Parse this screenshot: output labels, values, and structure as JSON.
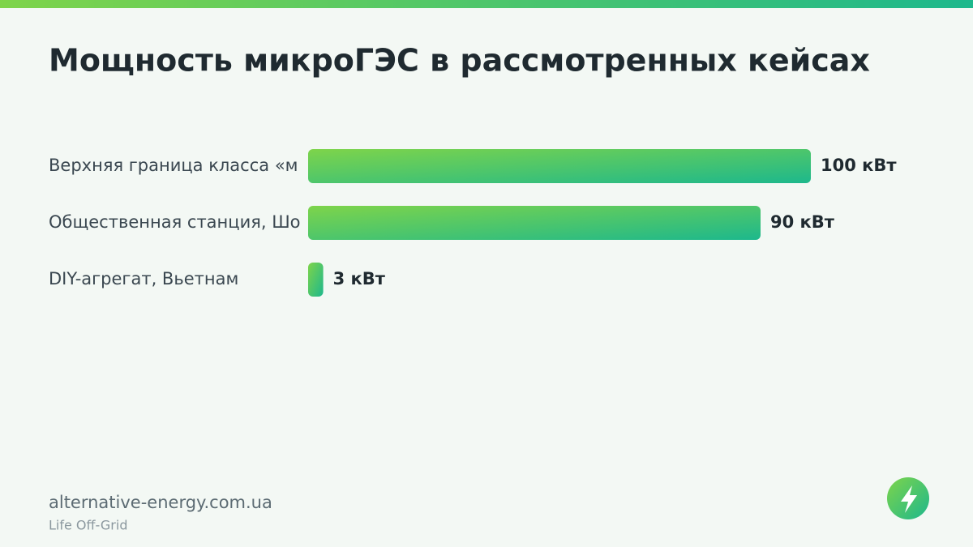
{
  "chart_data": {
    "type": "bar",
    "orientation": "horizontal",
    "title": "Мощность микроГЭС в рассмотренных кейсах",
    "categories": [
      "Верхняя граница класса «м",
      "Общественная станция, Шо",
      "DIY-агрегат, Вьетнам"
    ],
    "values": [
      100,
      90,
      3
    ],
    "value_labels": [
      "100 кВт",
      "90 кВт",
      "3 кВт"
    ],
    "xlim": [
      0,
      100
    ],
    "color": [
      "#7ed44a",
      "#1db88c"
    ]
  },
  "footer": {
    "site": "alternative-energy.com.ua",
    "tagline": "Life Off-Grid"
  }
}
